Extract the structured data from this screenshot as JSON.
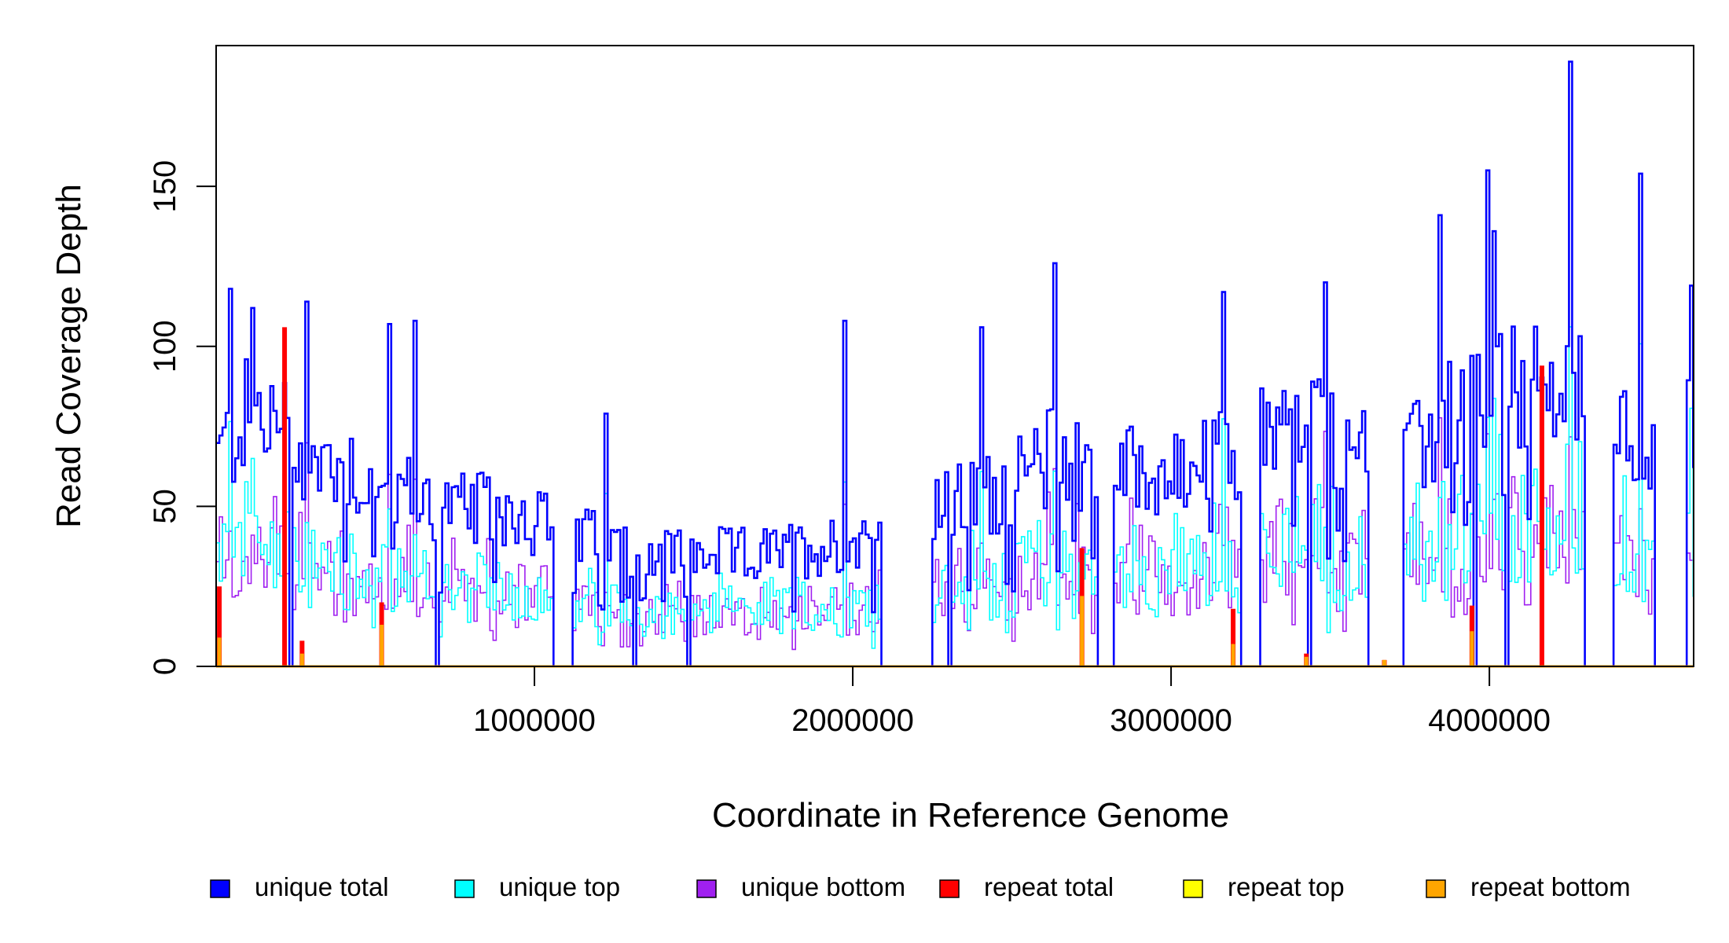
{
  "chart_data": {
    "type": "line",
    "xlabel": "Coordinate in Reference Genome",
    "ylabel": "Read Coverage Depth",
    "xlim": [
      0,
      4641652
    ],
    "ylim": [
      0,
      194
    ],
    "x_ticks": [
      1000000,
      2000000,
      3000000,
      4000000
    ],
    "x_tick_labels": [
      "1000000",
      "2000000",
      "3000000",
      "4000000"
    ],
    "y_ticks": [
      0,
      50,
      100,
      150
    ],
    "y_tick_labels": [
      "0",
      "50",
      "100",
      "150"
    ],
    "legend_position": "bottom",
    "series": [
      {
        "name": "unique total",
        "color": "#0000FF"
      },
      {
        "name": "unique top",
        "color": "#00FFFF"
      },
      {
        "name": "unique bottom",
        "color": "#A020F0"
      },
      {
        "name": "repeat total",
        "color": "#FF0000"
      },
      {
        "name": "repeat top",
        "color": "#FFFF00"
      },
      {
        "name": "repeat bottom",
        "color": "#FFA500"
      }
    ],
    "coverage_profile": {
      "bin_width": 10000,
      "unique_total_envelope": [
        [
          0,
          78
        ],
        [
          100000,
          95
        ],
        [
          200000,
          90
        ],
        [
          300000,
          75
        ],
        [
          400000,
          78
        ],
        [
          500000,
          65
        ],
        [
          600000,
          65
        ],
        [
          700000,
          60
        ],
        [
          800000,
          58
        ],
        [
          900000,
          60
        ],
        [
          1000000,
          55
        ],
        [
          1150000,
          48
        ],
        [
          1300000,
          45
        ],
        [
          1500000,
          42
        ],
        [
          1700000,
          42
        ],
        [
          1900000,
          45
        ],
        [
          2000000,
          48
        ],
        [
          2100000,
          50
        ],
        [
          2300000,
          60
        ],
        [
          2500000,
          68
        ],
        [
          2650000,
          82
        ],
        [
          2800000,
          72
        ],
        [
          2900000,
          75
        ],
        [
          3000000,
          70
        ],
        [
          3100000,
          75
        ],
        [
          3200000,
          80
        ],
        [
          3300000,
          88
        ],
        [
          3400000,
          92
        ],
        [
          3500000,
          88
        ],
        [
          3600000,
          82
        ],
        [
          3750000,
          78
        ],
        [
          3850000,
          92
        ],
        [
          3950000,
          100
        ],
        [
          4050000,
          105
        ],
        [
          4150000,
          102
        ],
        [
          4250000,
          105
        ],
        [
          4400000,
          85
        ],
        [
          4550000,
          88
        ],
        [
          4641652,
          90
        ]
      ],
      "zero_coverage_ranges": [
        [
          1055000,
          1115000
        ],
        [
          2085000,
          2245000
        ],
        [
          2765000,
          2815000
        ],
        [
          3220000,
          3275000
        ],
        [
          3620000,
          3730000
        ],
        [
          4295000,
          4385000
        ],
        [
          4515000,
          4615000
        ]
      ],
      "sparse_dropouts": [
        225000,
        690000,
        1310000,
        1475000,
        2295000,
        3425000,
        3950000,
        4045000
      ]
    },
    "spikes": [
      {
        "x": 45000,
        "y": 118
      },
      {
        "x": 110000,
        "y": 112
      },
      {
        "x": 280000,
        "y": 114
      },
      {
        "x": 545000,
        "y": 107
      },
      {
        "x": 625000,
        "y": 108
      },
      {
        "x": 1220000,
        "y": 79
      },
      {
        "x": 1975000,
        "y": 108
      },
      {
        "x": 2405000,
        "y": 106
      },
      {
        "x": 2630000,
        "y": 126
      },
      {
        "x": 3165000,
        "y": 117
      },
      {
        "x": 3480000,
        "y": 120
      },
      {
        "x": 3845000,
        "y": 141
      },
      {
        "x": 3990000,
        "y": 155
      },
      {
        "x": 4010000,
        "y": 136
      },
      {
        "x": 4255000,
        "y": 189
      },
      {
        "x": 4475000,
        "y": 154
      },
      {
        "x": 4635000,
        "y": 119
      }
    ],
    "repeat_spikes": [
      {
        "x": 10000,
        "total": 25,
        "bottom": 9
      },
      {
        "x": 215000,
        "total": 106,
        "bottom": 0
      },
      {
        "x": 270000,
        "total": 8,
        "bottom": 4
      },
      {
        "x": 520000,
        "total": 20,
        "bottom": 13
      },
      {
        "x": 2720000,
        "total": 37,
        "bottom": 22
      },
      {
        "x": 3195000,
        "total": 18,
        "bottom": 7
      },
      {
        "x": 3425000,
        "total": 4,
        "bottom": 3
      },
      {
        "x": 3670000,
        "total": 2,
        "bottom": 2
      },
      {
        "x": 3945000,
        "total": 19,
        "bottom": 11
      },
      {
        "x": 4165000,
        "total": 94,
        "bottom": 0
      }
    ]
  }
}
